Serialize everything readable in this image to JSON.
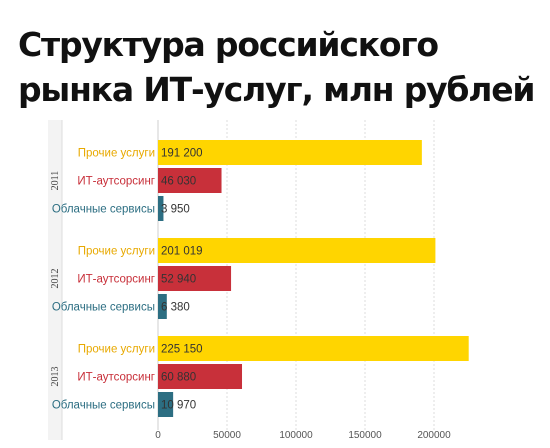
{
  "chart_data": {
    "type": "bar",
    "orientation": "horizontal",
    "title": "Структура российского рынка ИТ-услуг, млн рублей",
    "categories": [
      "Прочие услуги",
      "ИТ-аутсорсинг",
      "Облачные сервисы"
    ],
    "groups": [
      {
        "year": "2011",
        "bars": [
          {
            "category": "Прочие услуги",
            "value": 191200,
            "label": "191 200"
          },
          {
            "category": "ИТ-аутсорсинг",
            "value": 46030,
            "label": "46 030"
          },
          {
            "category": "Облачные сервисы",
            "value": 3950,
            "label": "3 950"
          }
        ]
      },
      {
        "year": "2012",
        "bars": [
          {
            "category": "Прочие услуги",
            "value": 201019,
            "label": "201 019"
          },
          {
            "category": "ИТ-аутсорсинг",
            "value": 52940,
            "label": "52 940"
          },
          {
            "category": "Облачные сервисы",
            "value": 6380,
            "label": "6 380"
          }
        ]
      },
      {
        "year": "2013",
        "bars": [
          {
            "category": "Прочие услуги",
            "value": 225150,
            "label": "225 150"
          },
          {
            "category": "ИТ-аутсорсинг",
            "value": 60880,
            "label": "60 880"
          },
          {
            "category": "Облачные сервисы",
            "value": 10970,
            "label": "10 970"
          }
        ]
      }
    ],
    "xlim": [
      0,
      225000
    ],
    "xticks": [
      0,
      50000,
      100000,
      150000,
      200000
    ],
    "xtick_labels": [
      "0",
      "50000",
      "100000",
      "150000",
      "200000"
    ],
    "grid": true,
    "colors": {
      "Прочие услуги": "#FFD500",
      "ИТ-аутсорсинг": "#C8303A",
      "Облачные сервисы": "#2C6E82"
    },
    "label_colors": {
      "Прочие услуги": "#E8A900",
      "ИТ-аутсорсинг": "#C8303A",
      "Облачные сервисы": "#2C6E82"
    }
  }
}
